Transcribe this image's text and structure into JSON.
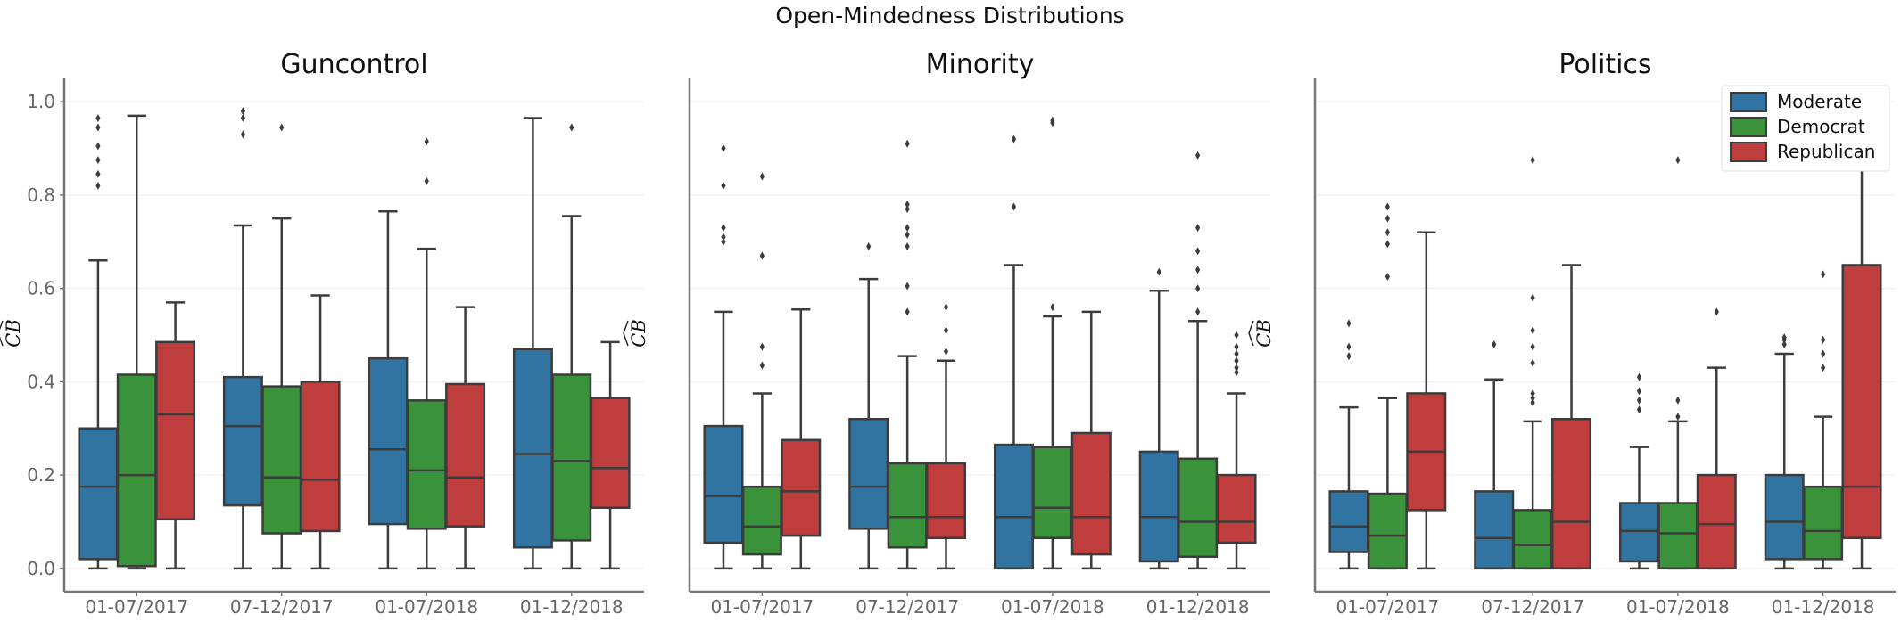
{
  "figure": {
    "title": "Open-Mindedness Distributions",
    "ylabel": "CB"
  },
  "colors": {
    "Moderate": "#3274a1",
    "Democrat": "#3a923a",
    "Republican": "#c03d3e",
    "edge": "#3c3c3c",
    "grid": "#ececec",
    "axis": "#777777"
  },
  "chart_data": [
    {
      "type": "box",
      "title": "Guncontrol",
      "xlabel": "",
      "ylabel": "CB",
      "ylim": [
        -0.05,
        1.05
      ],
      "yticks": [
        0.0,
        0.2,
        0.4,
        0.6,
        0.8,
        1.0
      ],
      "yticklabels": [
        "0.0",
        "0.2",
        "0.4",
        "0.6",
        "0.8",
        "1.0"
      ],
      "categories": [
        "01-07/2017",
        "07-12/2017",
        "01-07/2018",
        "01-12/2018"
      ],
      "grid": true,
      "legend": null,
      "series": [
        {
          "name": "Moderate",
          "boxes": [
            {
              "q1": 0.02,
              "median": 0.175,
              "q3": 0.3,
              "lo": 0.0,
              "hi": 0.66,
              "fliers": [
                0.82,
                0.845,
                0.875,
                0.905,
                0.945,
                0.965
              ]
            },
            {
              "q1": 0.135,
              "median": 0.305,
              "q3": 0.41,
              "lo": 0.0,
              "hi": 0.735,
              "fliers": [
                0.93,
                0.965,
                0.98
              ]
            },
            {
              "q1": 0.095,
              "median": 0.255,
              "q3": 0.45,
              "lo": 0.0,
              "hi": 0.765,
              "fliers": []
            },
            {
              "q1": 0.045,
              "median": 0.245,
              "q3": 0.47,
              "lo": 0.0,
              "hi": 0.965,
              "fliers": []
            }
          ]
        },
        {
          "name": "Democrat",
          "boxes": [
            {
              "q1": 0.005,
              "median": 0.2,
              "q3": 0.415,
              "lo": 0.0,
              "hi": 0.97,
              "fliers": []
            },
            {
              "q1": 0.075,
              "median": 0.195,
              "q3": 0.39,
              "lo": 0.0,
              "hi": 0.75,
              "fliers": [
                0.945
              ]
            },
            {
              "q1": 0.085,
              "median": 0.21,
              "q3": 0.36,
              "lo": 0.0,
              "hi": 0.685,
              "fliers": [
                0.83,
                0.915
              ]
            },
            {
              "q1": 0.06,
              "median": 0.23,
              "q3": 0.415,
              "lo": 0.0,
              "hi": 0.755,
              "fliers": [
                0.945
              ]
            }
          ]
        },
        {
          "name": "Republican",
          "boxes": [
            {
              "q1": 0.105,
              "median": 0.33,
              "q3": 0.485,
              "lo": 0.0,
              "hi": 0.57,
              "fliers": []
            },
            {
              "q1": 0.08,
              "median": 0.19,
              "q3": 0.4,
              "lo": 0.0,
              "hi": 0.585,
              "fliers": []
            },
            {
              "q1": 0.09,
              "median": 0.195,
              "q3": 0.395,
              "lo": 0.0,
              "hi": 0.56,
              "fliers": []
            },
            {
              "q1": 0.13,
              "median": 0.215,
              "q3": 0.365,
              "lo": 0.0,
              "hi": 0.485,
              "fliers": []
            }
          ]
        }
      ]
    },
    {
      "type": "box",
      "title": "Minority",
      "xlabel": "",
      "ylabel": "CB",
      "ylim": [
        -0.05,
        1.05
      ],
      "yticks": [],
      "yticklabels": [],
      "categories": [
        "01-07/2017",
        "07-12/2017",
        "01-07/2018",
        "01-12/2018"
      ],
      "grid": true,
      "legend": null,
      "series": [
        {
          "name": "Moderate",
          "boxes": [
            {
              "q1": 0.055,
              "median": 0.155,
              "q3": 0.305,
              "lo": 0.0,
              "hi": 0.55,
              "fliers": [
                0.7,
                0.71,
                0.73,
                0.82,
                0.9
              ]
            },
            {
              "q1": 0.085,
              "median": 0.175,
              "q3": 0.32,
              "lo": 0.0,
              "hi": 0.62,
              "fliers": [
                0.69
              ]
            },
            {
              "q1": 0.0,
              "median": 0.11,
              "q3": 0.265,
              "lo": 0.0,
              "hi": 0.65,
              "fliers": [
                0.775,
                0.92
              ]
            },
            {
              "q1": 0.015,
              "median": 0.11,
              "q3": 0.25,
              "lo": 0.0,
              "hi": 0.595,
              "fliers": [
                0.635
              ]
            }
          ]
        },
        {
          "name": "Democrat",
          "boxes": [
            {
              "q1": 0.03,
              "median": 0.09,
              "q3": 0.175,
              "lo": 0.0,
              "hi": 0.375,
              "fliers": [
                0.435,
                0.475,
                0.67,
                0.84
              ]
            },
            {
              "q1": 0.045,
              "median": 0.11,
              "q3": 0.225,
              "lo": 0.0,
              "hi": 0.455,
              "fliers": [
                0.55,
                0.605,
                0.69,
                0.715,
                0.73,
                0.77,
                0.78,
                0.91
              ]
            },
            {
              "q1": 0.065,
              "median": 0.13,
              "q3": 0.26,
              "lo": 0.0,
              "hi": 0.54,
              "fliers": [
                0.56,
                0.955,
                0.96
              ]
            },
            {
              "q1": 0.025,
              "median": 0.1,
              "q3": 0.235,
              "lo": 0.0,
              "hi": 0.53,
              "fliers": [
                0.55,
                0.6,
                0.64,
                0.68,
                0.73,
                0.885
              ]
            }
          ]
        },
        {
          "name": "Republican",
          "boxes": [
            {
              "q1": 0.07,
              "median": 0.165,
              "q3": 0.275,
              "lo": 0.0,
              "hi": 0.555,
              "fliers": []
            },
            {
              "q1": 0.065,
              "median": 0.11,
              "q3": 0.225,
              "lo": 0.0,
              "hi": 0.445,
              "fliers": [
                0.465,
                0.51,
                0.56
              ]
            },
            {
              "q1": 0.03,
              "median": 0.11,
              "q3": 0.29,
              "lo": 0.0,
              "hi": 0.55,
              "fliers": []
            },
            {
              "q1": 0.055,
              "median": 0.1,
              "q3": 0.2,
              "lo": 0.0,
              "hi": 0.375,
              "fliers": [
                0.42,
                0.43,
                0.445,
                0.46,
                0.475,
                0.5
              ]
            }
          ]
        }
      ]
    },
    {
      "type": "box",
      "title": "Politics",
      "xlabel": "",
      "ylabel": "CB",
      "ylim": [
        -0.05,
        1.05
      ],
      "yticks": [],
      "yticklabels": [],
      "categories": [
        "01-07/2017",
        "07-12/2017",
        "01-07/2018",
        "01-12/2018"
      ],
      "grid": true,
      "legend": "top-right",
      "series": [
        {
          "name": "Moderate",
          "boxes": [
            {
              "q1": 0.035,
              "median": 0.09,
              "q3": 0.165,
              "lo": 0.0,
              "hi": 0.345,
              "fliers": [
                0.455,
                0.475,
                0.525
              ]
            },
            {
              "q1": 0.0,
              "median": 0.065,
              "q3": 0.165,
              "lo": 0.0,
              "hi": 0.405,
              "fliers": [
                0.48
              ]
            },
            {
              "q1": 0.015,
              "median": 0.08,
              "q3": 0.14,
              "lo": 0.0,
              "hi": 0.26,
              "fliers": [
                0.34,
                0.36,
                0.38,
                0.41
              ]
            },
            {
              "q1": 0.02,
              "median": 0.1,
              "q3": 0.2,
              "lo": 0.0,
              "hi": 0.46,
              "fliers": [
                0.48,
                0.49,
                0.495
              ]
            }
          ]
        },
        {
          "name": "Democrat",
          "boxes": [
            {
              "q1": 0.0,
              "median": 0.07,
              "q3": 0.16,
              "lo": 0.0,
              "hi": 0.365,
              "fliers": [
                0.625,
                0.695,
                0.72,
                0.75,
                0.775
              ]
            },
            {
              "q1": 0.0,
              "median": 0.05,
              "q3": 0.125,
              "lo": 0.0,
              "hi": 0.315,
              "fliers": [
                0.355,
                0.365,
                0.375,
                0.44,
                0.475,
                0.51,
                0.58,
                0.875
              ]
            },
            {
              "q1": 0.0,
              "median": 0.075,
              "q3": 0.14,
              "lo": 0.0,
              "hi": 0.315,
              "fliers": [
                0.325,
                0.36,
                0.875
              ]
            },
            {
              "q1": 0.02,
              "median": 0.08,
              "q3": 0.175,
              "lo": 0.0,
              "hi": 0.325,
              "fliers": [
                0.43,
                0.46,
                0.49,
                0.63
              ]
            }
          ]
        },
        {
          "name": "Republican",
          "boxes": [
            {
              "q1": 0.125,
              "median": 0.25,
              "q3": 0.375,
              "lo": 0.0,
              "hi": 0.72,
              "fliers": []
            },
            {
              "q1": 0.0,
              "median": 0.1,
              "q3": 0.32,
              "lo": 0.0,
              "hi": 0.65,
              "fliers": []
            },
            {
              "q1": 0.0,
              "median": 0.095,
              "q3": 0.2,
              "lo": 0.0,
              "hi": 0.43,
              "fliers": [
                0.55
              ]
            },
            {
              "q1": 0.065,
              "median": 0.175,
              "q3": 0.65,
              "lo": 0.0,
              "hi": 0.87,
              "fliers": []
            }
          ]
        }
      ]
    }
  ]
}
